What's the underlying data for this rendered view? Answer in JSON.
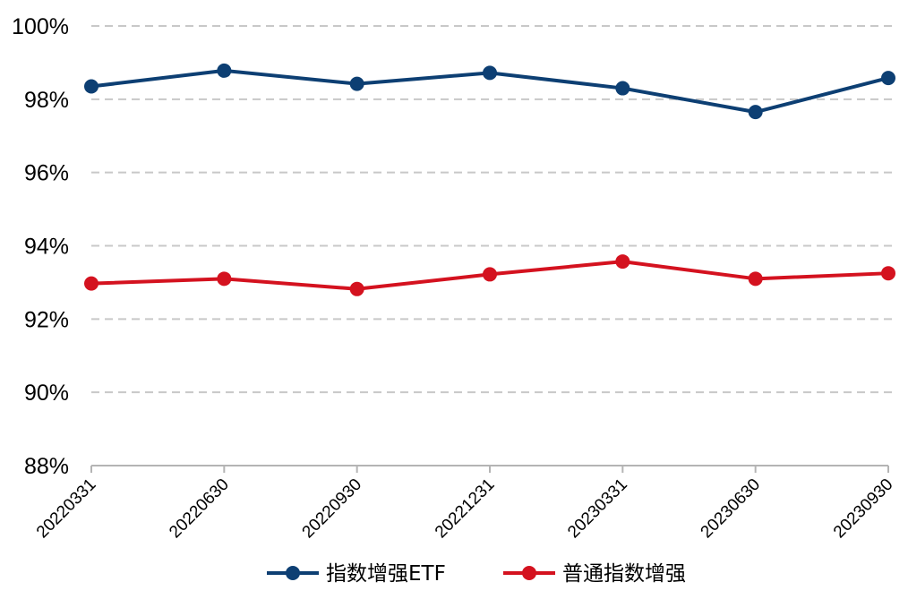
{
  "chart_data": {
    "type": "line",
    "title": "",
    "xlabel": "",
    "ylabel": "",
    "categories": [
      "20220331",
      "20220630",
      "20220930",
      "20221231",
      "20230331",
      "20230630",
      "20230930"
    ],
    "ylim": [
      88,
      100
    ],
    "yticks": [
      88,
      90,
      92,
      94,
      96,
      98,
      100
    ],
    "ytick_labels": [
      "88%",
      "90%",
      "92%",
      "94%",
      "96%",
      "98%",
      "100%"
    ],
    "grid": true,
    "legend_position": "bottom",
    "series": [
      {
        "name": "指数增强ETF",
        "color": "#0d3f73",
        "values": [
          98.35,
          98.78,
          98.42,
          98.72,
          98.3,
          97.65,
          98.58
        ]
      },
      {
        "name": "普通指数增强",
        "color": "#d4121f",
        "values": [
          92.97,
          93.1,
          92.82,
          93.22,
          93.57,
          93.1,
          93.25
        ]
      }
    ]
  }
}
